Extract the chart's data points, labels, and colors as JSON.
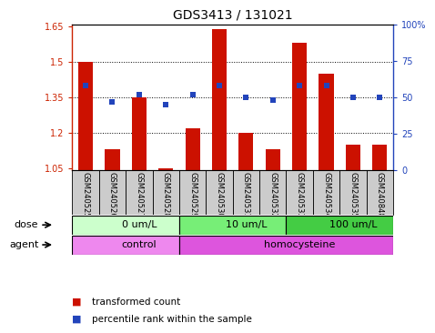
{
  "title": "GDS3413 / 131021",
  "samples": [
    "GSM240525",
    "GSM240526",
    "GSM240527",
    "GSM240528",
    "GSM240529",
    "GSM240530",
    "GSM240531",
    "GSM240532",
    "GSM240533",
    "GSM240534",
    "GSM240535",
    "GSM240848"
  ],
  "transformed_count": [
    1.5,
    1.13,
    1.35,
    1.05,
    1.22,
    1.64,
    1.2,
    1.13,
    1.58,
    1.45,
    1.15,
    1.15
  ],
  "percentile_rank": [
    58,
    47,
    52,
    45,
    52,
    58,
    50,
    48,
    58,
    58,
    50,
    50
  ],
  "ylim_left": [
    1.04,
    1.66
  ],
  "ylim_right": [
    0,
    100
  ],
  "yticks_left": [
    1.05,
    1.2,
    1.35,
    1.5,
    1.65
  ],
  "yticks_right": [
    0,
    25,
    50,
    75,
    100
  ],
  "ytick_labels_right": [
    "0",
    "25",
    "50",
    "75",
    "100%"
  ],
  "bar_color": "#cc1100",
  "dot_color": "#2244bb",
  "dose_groups": [
    {
      "label": "0 um/L",
      "start": 0,
      "end": 4,
      "color": "#ccffcc"
    },
    {
      "label": "10 um/L",
      "start": 4,
      "end": 8,
      "color": "#77ee77"
    },
    {
      "label": "100 um/L",
      "start": 8,
      "end": 12,
      "color": "#44cc44"
    }
  ],
  "agent_groups": [
    {
      "label": "control",
      "start": 0,
      "end": 4,
      "color": "#ee88ee"
    },
    {
      "label": "homocysteine",
      "start": 4,
      "end": 12,
      "color": "#dd55dd"
    }
  ],
  "dose_label": "dose",
  "agent_label": "agent",
  "legend_red_label": "transformed count",
  "legend_blue_label": "percentile rank within the sample",
  "bg_color": "#ffffff",
  "tick_bg_color": "#cccccc",
  "label_color_left": "#cc2200",
  "label_color_right": "#2244bb",
  "title_fontsize": 10,
  "axis_fontsize": 7,
  "sample_fontsize": 6,
  "row_fontsize": 8
}
